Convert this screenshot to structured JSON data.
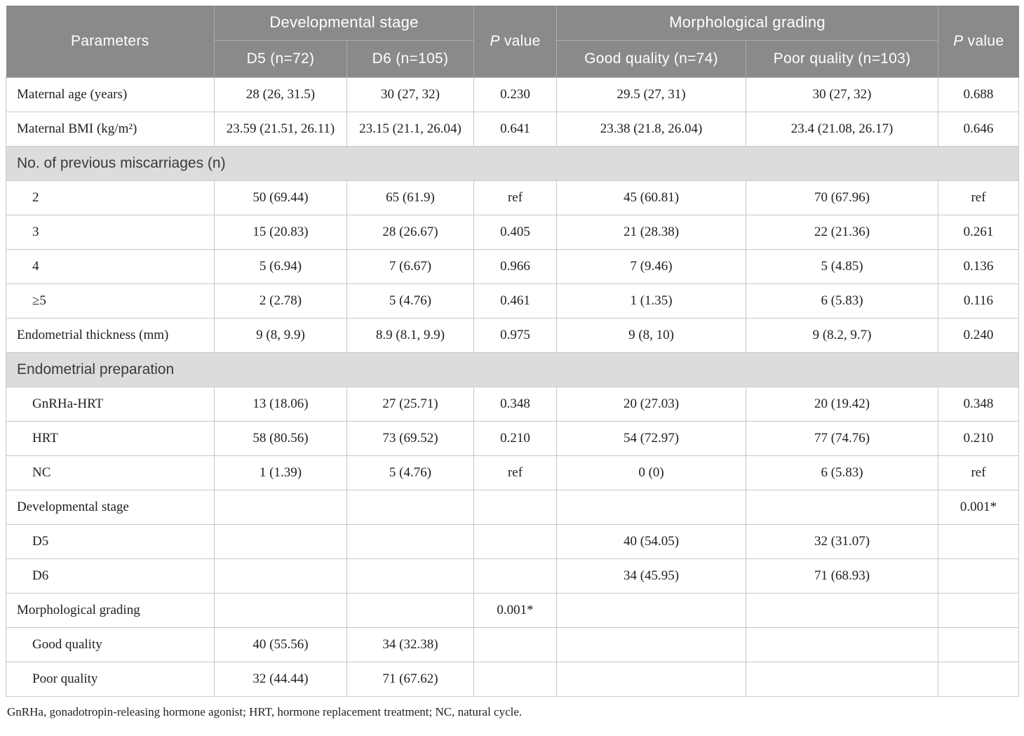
{
  "header": {
    "parameters": "Parameters",
    "dev_group": "Developmental stage",
    "morph_group": "Morphological grading",
    "d5": "D5 (n=72)",
    "d6": "D6 (n=105)",
    "good": "Good quality (n=74)",
    "poor": "Poor quality (n=103)",
    "p_italic": "P",
    "p_rest": " value"
  },
  "rows": [
    {
      "section": false,
      "indent": false,
      "label": "Maternal age (years)",
      "cells": [
        "28 (26, 31.5)",
        "30 (27, 32)",
        "0.230",
        "29.5 (27, 31)",
        "30 (27, 32)",
        "0.688"
      ]
    },
    {
      "section": false,
      "indent": false,
      "label": "Maternal BMI (kg/m²)",
      "cells": [
        "23.59 (21.51, 26.11)",
        "23.15 (21.1, 26.04)",
        "0.641",
        "23.38 (21.8, 26.04)",
        "23.4 (21.08, 26.17)",
        "0.646"
      ]
    },
    {
      "section": true,
      "label": "No. of previous miscarriages (n)"
    },
    {
      "section": false,
      "indent": true,
      "label": "2",
      "cells": [
        "50 (69.44)",
        "65 (61.9)",
        "ref",
        "45 (60.81)",
        "70 (67.96)",
        "ref"
      ]
    },
    {
      "section": false,
      "indent": true,
      "label": "3",
      "cells": [
        "15 (20.83)",
        "28 (26.67)",
        "0.405",
        "21 (28.38)",
        "22 (21.36)",
        "0.261"
      ]
    },
    {
      "section": false,
      "indent": true,
      "label": "4",
      "cells": [
        "5 (6.94)",
        "7 (6.67)",
        "0.966",
        "7 (9.46)",
        "5 (4.85)",
        "0.136"
      ]
    },
    {
      "section": false,
      "indent": true,
      "label": "≥5",
      "cells": [
        "2 (2.78)",
        "5 (4.76)",
        "0.461",
        "1 (1.35)",
        "6 (5.83)",
        "0.116"
      ]
    },
    {
      "section": false,
      "indent": false,
      "label": "Endometrial thickness (mm)",
      "cells": [
        "9 (8, 9.9)",
        "8.9 (8.1, 9.9)",
        "0.975",
        "9 (8, 10)",
        "9 (8.2, 9.7)",
        "0.240"
      ]
    },
    {
      "section": true,
      "label": "Endometrial preparation"
    },
    {
      "section": false,
      "indent": true,
      "label": "GnRHa-HRT",
      "cells": [
        "13 (18.06)",
        "27 (25.71)",
        "0.348",
        "20 (27.03)",
        "20 (19.42)",
        "0.348"
      ]
    },
    {
      "section": false,
      "indent": true,
      "label": "HRT",
      "cells": [
        "58 (80.56)",
        "73 (69.52)",
        "0.210",
        "54 (72.97)",
        "77 (74.76)",
        "0.210"
      ]
    },
    {
      "section": false,
      "indent": true,
      "label": "NC",
      "cells": [
        "1 (1.39)",
        "5 (4.76)",
        "ref",
        "0 (0)",
        "6 (5.83)",
        "ref"
      ]
    },
    {
      "section": false,
      "indent": false,
      "label": "Developmental stage",
      "cells": [
        "",
        "",
        "",
        "",
        "",
        "0.001*"
      ]
    },
    {
      "section": false,
      "indent": true,
      "label": "D5",
      "cells": [
        "",
        "",
        "",
        "40 (54.05)",
        "32 (31.07)",
        ""
      ]
    },
    {
      "section": false,
      "indent": true,
      "label": "D6",
      "cells": [
        "",
        "",
        "",
        "34 (45.95)",
        "71 (68.93)",
        ""
      ]
    },
    {
      "section": false,
      "indent": false,
      "label": "Morphological grading",
      "cells": [
        "",
        "",
        "0.001*",
        "",
        "",
        ""
      ]
    },
    {
      "section": false,
      "indent": true,
      "label": "Good quality",
      "cells": [
        "40 (55.56)",
        "34 (32.38)",
        "",
        "",
        "",
        ""
      ]
    },
    {
      "section": false,
      "indent": true,
      "label": "Poor quality",
      "cells": [
        "32 (44.44)",
        "71 (67.62)",
        "",
        "",
        "",
        ""
      ]
    }
  ],
  "footnote": "GnRHa, gonadotropin-releasing hormone agonist; HRT, hormone replacement treatment; NC, natural cycle.",
  "colors": {
    "header_bg": "#8a8a8a",
    "section_bg": "#dcdcdc",
    "body_border": "#c8c8c8",
    "header_text": "#ffffff",
    "body_text": "#1f1f1f"
  }
}
